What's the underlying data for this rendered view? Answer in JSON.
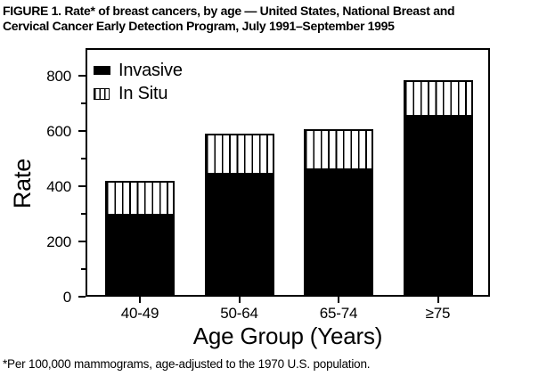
{
  "title": {
    "line1": "FIGURE 1. Rate* of breast cancers, by age — United States, National Breast and",
    "line2": "Cervical Cancer Early Detection Program, July 1991–September 1995"
  },
  "footnote": "*Per 100,000 mammograms, age-adjusted to the 1970 U.S. population.",
  "colors": {
    "ink": "#000000",
    "paper": "#ffffff"
  },
  "chart_data": {
    "type": "bar",
    "stacked": true,
    "title": "FIGURE 1. Rate* of breast cancers, by age — United States, National Breast and Cervical Cancer Early Detection Program, July 1991–September 1995",
    "categories": [
      "40-49",
      "50-64",
      "65-74",
      "≥75"
    ],
    "series": [
      {
        "name": "Invasive",
        "style": "solid",
        "values": [
          287,
          437,
          452,
          645
        ]
      },
      {
        "name": "In Situ",
        "style": "vertical-hatch",
        "values": [
          125,
          148,
          147,
          133
        ]
      }
    ],
    "stack_totals": [
      412,
      585,
      599,
      778
    ],
    "xlabel": "Age Group (Years)",
    "ylabel": "Rate",
    "ylim": [
      0,
      900
    ],
    "yticks_major": [
      0,
      200,
      400,
      600,
      800
    ],
    "yticks_minor": [
      100,
      300,
      500,
      700
    ],
    "grid": false,
    "legend_position": "upper-left-inside"
  }
}
